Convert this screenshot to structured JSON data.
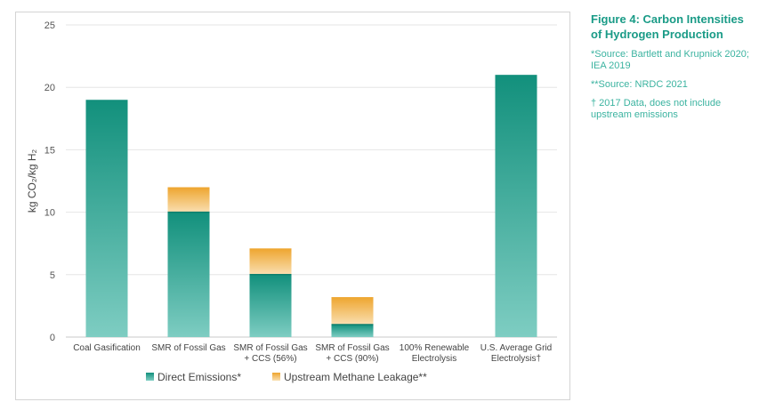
{
  "figure": {
    "title": "Figure 4: Carbon Intensities of Hydrogen Production",
    "notes": [
      "*Source: Bartlett and Krupnick 2020; IEA 2019",
      "**Source: NRDC 2021",
      "† 2017 Data, does not include upstream emissions"
    ]
  },
  "chart_data": {
    "type": "bar",
    "stacked": true,
    "ylabel": "kg CO₂/kg H₂",
    "ylim": [
      0,
      25
    ],
    "yticks": [
      0,
      5,
      10,
      15,
      20,
      25
    ],
    "grid": true,
    "legend_position": "bottom",
    "categories": [
      [
        "Coal Gasification"
      ],
      [
        "SMR of Fossil Gas"
      ],
      [
        "SMR of Fossil Gas",
        "+ CCS (56%)"
      ],
      [
        "SMR of Fossil Gas",
        "+ CCS (90%)"
      ],
      [
        "100% Renewable",
        "Electrolysis"
      ],
      [
        "U.S. Average Grid",
        "Electrolysis†"
      ]
    ],
    "series": [
      {
        "name": "Direct Emissions*",
        "color": "#1a9b87",
        "values": [
          19,
          10,
          5,
          1,
          0,
          21
        ]
      },
      {
        "name": "Upstream Methane Leakage**",
        "color": "#f0ab35",
        "values": [
          0,
          2,
          2.1,
          2.2,
          0,
          0
        ]
      }
    ]
  }
}
